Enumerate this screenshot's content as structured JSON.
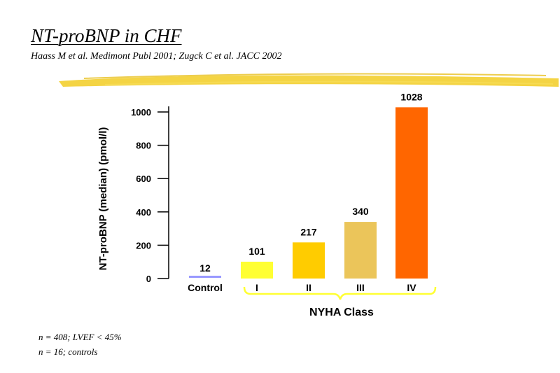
{
  "title": "NT-proBNP in CHF",
  "subtitle": "Haass M et al. Medimont Publ 2001; Zugck C et al. JACC 2002",
  "notes": [
    "n = 408; LVEF < 45%",
    "n = 16; controls"
  ],
  "colors": {
    "highlighter": "#f3d23a",
    "control": "#9999ff",
    "I": "#ffff33",
    "II": "#ffcc00",
    "III": "#ebc55a",
    "IV": "#ff6600",
    "bracket": "#ffff33"
  },
  "chart_data": {
    "type": "bar",
    "categories": [
      "Control",
      "I",
      "II",
      "III",
      "IV"
    ],
    "values": [
      12,
      101,
      217,
      340,
      1028
    ],
    "data_labels": [
      "12",
      "101",
      "217",
      "340",
      "1028"
    ],
    "ylabel": "NT-proBNP (median) (pmol/l)",
    "yticks": [
      0,
      200,
      400,
      600,
      800,
      1000
    ],
    "ylim": [
      0,
      1000
    ],
    "group_label": "NYHA Class",
    "group_categories": [
      "I",
      "II",
      "III",
      "IV"
    ],
    "grid": false
  }
}
